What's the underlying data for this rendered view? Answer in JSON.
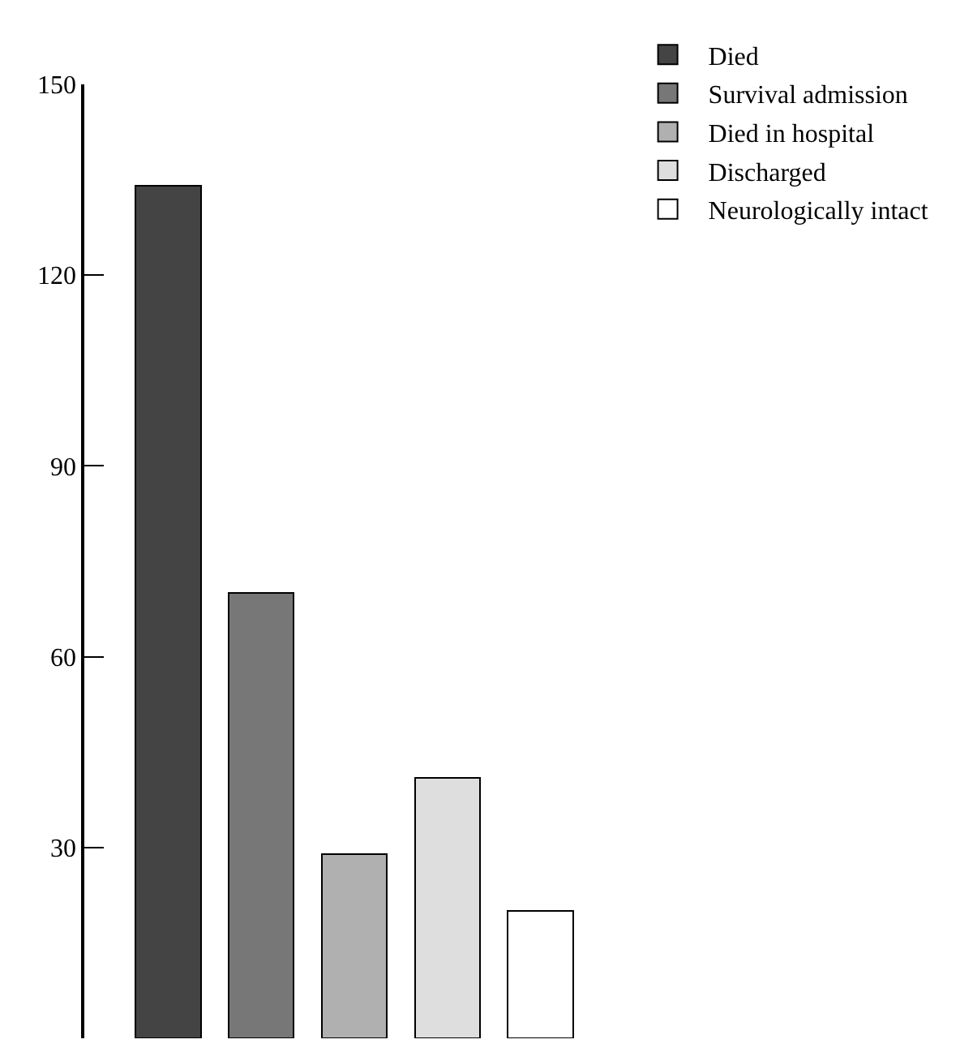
{
  "chart_data": {
    "type": "bar",
    "categories": [
      null,
      null,
      null,
      null,
      null
    ],
    "stacked": true,
    "series": [
      {
        "name": "Died",
        "color": "#444444",
        "values": [
          134,
          null,
          null,
          null,
          null
        ]
      },
      {
        "name": "Survival admission",
        "color": "#777777",
        "values": [
          null,
          70,
          null,
          null,
          null
        ]
      },
      {
        "name": "Died in hospital",
        "color": "#b0b0b0",
        "values": [
          null,
          null,
          29,
          null,
          null
        ]
      },
      {
        "name": "Discharged",
        "color": "#dedede",
        "values": [
          null,
          null,
          null,
          41,
          null
        ]
      },
      {
        "name": "Neurologically intact",
        "color": "#ffffff",
        "values": [
          null,
          null,
          null,
          null,
          20
        ]
      }
    ],
    "ylim": [
      0,
      150
    ],
    "yticks": [
      30,
      60,
      90,
      120,
      150
    ],
    "grid": false,
    "legend": "top right",
    "tick_labels": "y"
  }
}
